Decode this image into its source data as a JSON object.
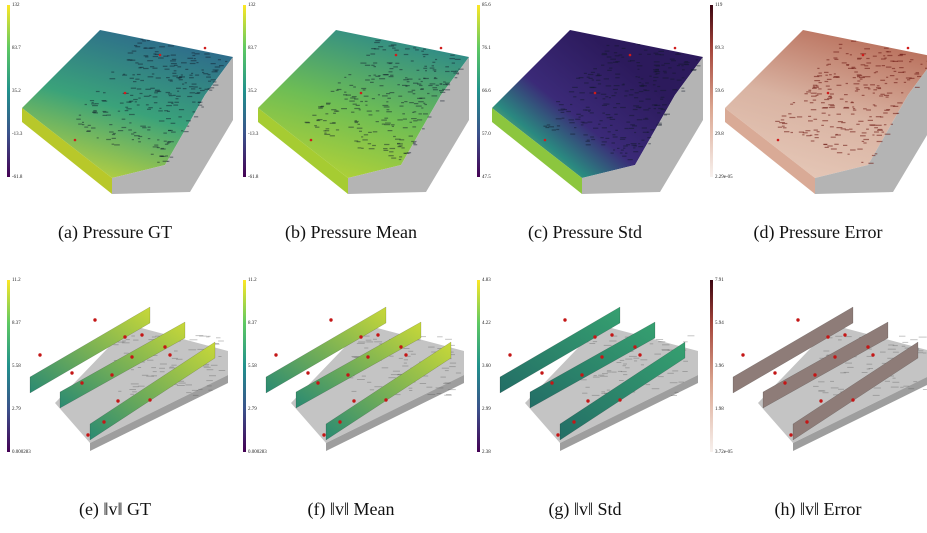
{
  "panels": [
    {
      "caption": "(a) Pressure GT",
      "colorbar": [
        "132",
        "83.7",
        "35.2",
        "-13.3",
        "-61.8"
      ]
    },
    {
      "caption": "(b) Pressure Mean",
      "colorbar": [
        "132",
        "83.7",
        "35.2",
        "-13.3",
        "-61.8"
      ]
    },
    {
      "caption": "(c) Pressure Std",
      "colorbar": [
        "85.6",
        "76.1",
        "66.6",
        "57.0",
        "47.5"
      ]
    },
    {
      "caption": "(d) Pressure Error",
      "colorbar": [
        "119",
        "89.3",
        "59.6",
        "29.8",
        "2.29e-05"
      ]
    },
    {
      "caption": "(e) ‖v‖ GT",
      "colorbar": [
        "11.2",
        "8.37",
        "5.58",
        "2.79",
        "0.000283"
      ]
    },
    {
      "caption": "(f) ‖v‖ Mean",
      "colorbar": [
        "11.2",
        "8.37",
        "5.58",
        "2.79",
        "0.000283"
      ]
    },
    {
      "caption": "(g) ‖v‖ Std",
      "colorbar": [
        "4.83",
        "4.22",
        "3.60",
        "2.99",
        "2.38"
      ]
    },
    {
      "caption": "(h) ‖v‖ Error",
      "colorbar": [
        "7.91",
        "5.94",
        "3.96",
        "1.98",
        "3.72e-05"
      ]
    }
  ]
}
